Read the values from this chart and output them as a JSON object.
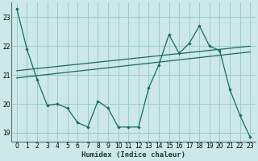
{
  "xlabel": "Humidex (Indice chaleur)",
  "background_color": "#cce8e8",
  "grid_color": "#99cccc",
  "line_color": "#1a6b5a",
  "xlim": [
    -0.5,
    23.5
  ],
  "ylim": [
    18.7,
    23.5
  ],
  "yticks": [
    19,
    20,
    21,
    22,
    23
  ],
  "xticks": [
    0,
    1,
    2,
    3,
    4,
    5,
    6,
    7,
    8,
    9,
    10,
    11,
    12,
    13,
    14,
    15,
    16,
    17,
    18,
    19,
    20,
    21,
    22,
    23
  ],
  "series1_x": [
    0,
    1,
    2,
    3,
    4,
    5,
    6,
    7,
    8,
    9,
    10,
    11,
    12,
    13,
    14,
    15,
    16,
    17,
    18,
    19,
    20,
    21,
    22,
    23
  ],
  "series1_y": [
    23.3,
    21.9,
    20.85,
    19.95,
    20.0,
    19.85,
    19.35,
    19.2,
    20.1,
    19.85,
    19.2,
    19.2,
    19.2,
    20.55,
    21.35,
    22.4,
    21.75,
    22.1,
    22.7,
    22.0,
    21.85,
    20.5,
    19.6,
    18.85
  ],
  "series2_x": [
    0,
    23
  ],
  "series2_y": [
    20.9,
    21.8
  ],
  "series3_x": [
    0,
    23
  ],
  "series3_y": [
    21.15,
    22.0
  ]
}
